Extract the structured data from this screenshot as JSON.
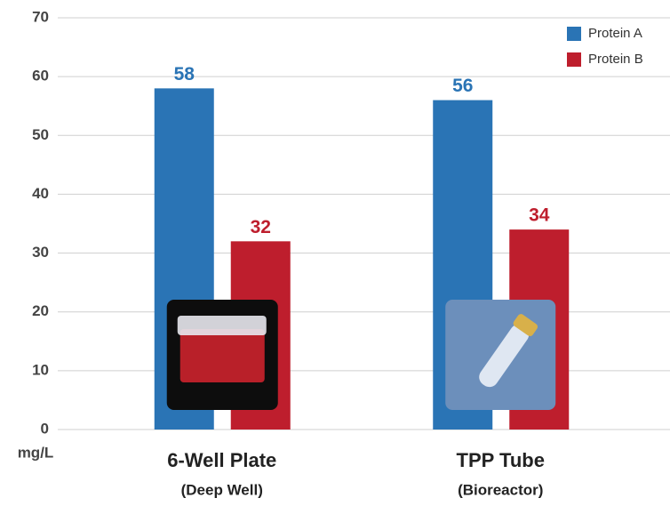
{
  "chart_data": {
    "type": "bar",
    "categories": [
      "6-Well Plate",
      "TPP Tube"
    ],
    "category_subtitles": [
      "(Deep Well)",
      "(Bioreactor)"
    ],
    "y_label": "mg/L",
    "series": [
      {
        "name": "Protein A",
        "color": "#2a74b5",
        "values": [
          58,
          56
        ]
      },
      {
        "name": "Protein B",
        "color": "#be1e2d",
        "values": [
          32,
          34
        ]
      }
    ],
    "ylim": [
      0,
      70
    ],
    "yticks": [
      0,
      10,
      20,
      30,
      40,
      50,
      60,
      70
    ],
    "grid": true,
    "legend": "top-right"
  }
}
